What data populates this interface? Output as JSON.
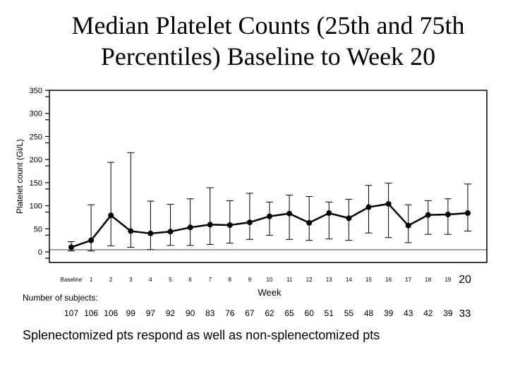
{
  "title_line1": "Median Platelet Counts (25th and 75th",
  "title_line2": "Percentiles) Baseline to Week 20",
  "subjects_label": "Number of subjects:",
  "footer": "Splenectomized pts respond as well as non-splenectomized pts",
  "chart_data": {
    "type": "line",
    "xlabel": "Week",
    "ylabel": "Platelet count (Gi/L)",
    "ylim": [
      0,
      350
    ],
    "yticks": [
      0,
      50,
      100,
      150,
      200,
      250,
      300,
      350
    ],
    "categories": [
      "Baseline",
      "1",
      "2",
      "3",
      "4",
      "5",
      "6",
      "7",
      "8",
      "9",
      "10",
      "11",
      "12",
      "13",
      "14",
      "15",
      "16",
      "17",
      "18",
      "19",
      "20"
    ],
    "median": [
      10,
      25,
      79,
      45,
      40,
      44,
      53,
      59,
      58,
      64,
      77,
      83,
      63,
      84,
      73,
      97,
      104,
      57,
      80,
      81,
      84
    ],
    "p25": [
      2,
      2,
      13,
      10,
      5,
      14,
      14,
      16,
      19,
      27,
      36,
      27,
      25,
      28,
      25,
      41,
      31,
      20,
      38,
      38,
      45
    ],
    "p75": [
      22,
      102,
      194,
      215,
      110,
      103,
      115,
      139,
      111,
      127,
      108,
      123,
      120,
      108,
      114,
      144,
      149,
      102,
      111,
      115,
      147
    ],
    "subjects": [
      "107",
      "106",
      "106",
      "99",
      "97",
      "92",
      "90",
      "83",
      "76",
      "67",
      "62",
      "65",
      "60",
      "51",
      "55",
      "48",
      "39",
      "43",
      "42",
      "39",
      "33"
    ]
  }
}
